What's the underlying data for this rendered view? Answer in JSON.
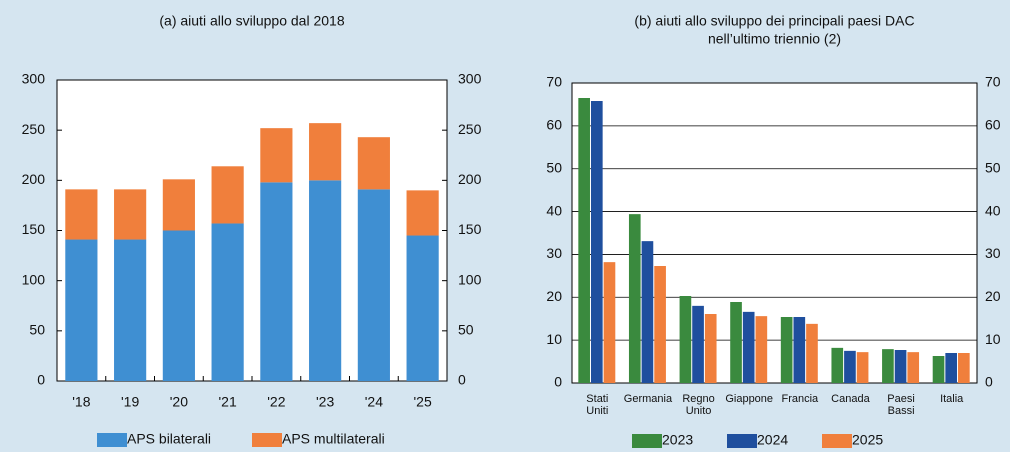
{
  "chart_data": [
    {
      "type": "bar",
      "stacked": true,
      "title": [
        "(a) aiuti allo sviluppo dal 2018"
      ],
      "categories": [
        "'18",
        "'19",
        "'20",
        "'21",
        "'22",
        "'23",
        "'24",
        "'25"
      ],
      "series": [
        {
          "name": "APS bilaterali",
          "color": "#3f8fd2",
          "values": [
            141,
            141,
            150,
            157,
            198,
            200,
            191,
            145
          ]
        },
        {
          "name": "APS multilaterali",
          "color": "#f07f3c",
          "values": [
            50,
            50,
            51,
            57,
            54,
            57,
            52,
            45
          ]
        }
      ],
      "ylim": [
        0,
        300
      ],
      "yticks": [
        0,
        50,
        100,
        150,
        200,
        250,
        300
      ],
      "y2lim": [
        0,
        300
      ],
      "y2ticks": [
        0,
        50,
        100,
        150,
        200,
        250,
        300
      ],
      "grid": false
    },
    {
      "type": "bar",
      "stacked": false,
      "title": [
        "(b) aiuti allo sviluppo dei principali paesi DAC",
        "nell’ultimo triennio (2)"
      ],
      "categories": [
        "Stati Uniti",
        "Germania",
        "Regno Unito",
        "Giappone",
        "Francia",
        "Canada",
        "Paesi Bassi",
        "Italia"
      ],
      "series": [
        {
          "name": "2023",
          "color": "#3a8a3e",
          "values": [
            66.5,
            39.4,
            20.3,
            18.9,
            15.4,
            8.2,
            7.9,
            6.3
          ]
        },
        {
          "name": "2024",
          "color": "#1f4f9e",
          "values": [
            65.8,
            33.1,
            18,
            16.6,
            15.4,
            7.5,
            7.7,
            7
          ]
        },
        {
          "name": "2025",
          "color": "#f07f3c",
          "values": [
            28.2,
            27.3,
            16.1,
            15.6,
            13.8,
            7.2,
            7.2,
            7
          ]
        }
      ],
      "ylim": [
        0,
        70
      ],
      "yticks": [
        0,
        10,
        20,
        30,
        40,
        50,
        60,
        70
      ],
      "y2lim": [
        0,
        70
      ],
      "y2ticks": [
        0,
        10,
        20,
        30,
        40,
        50,
        60,
        70
      ],
      "grid": true
    }
  ]
}
